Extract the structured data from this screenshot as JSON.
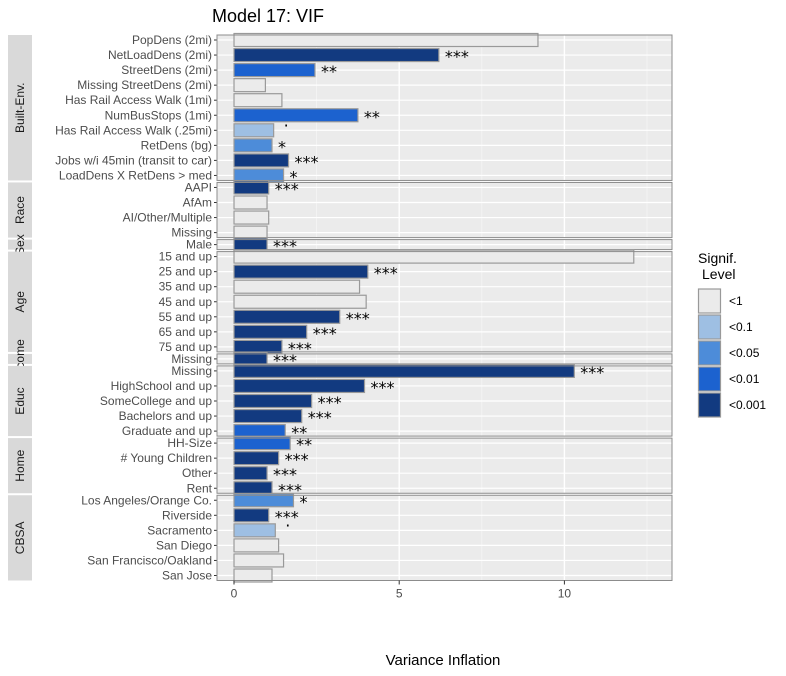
{
  "chart_data": {
    "type": "bar",
    "orientation": "horizontal",
    "title": "Model 17: VIF",
    "xlabel": "Variance Inflation",
    "ylabel": "",
    "xlim": [
      0,
      13.3
    ],
    "x_ticks": [
      0,
      5,
      10
    ],
    "grid": true,
    "legend": {
      "title_lines": [
        "Signif.",
        "Level"
      ],
      "placement": "right",
      "items": [
        {
          "label": "<1",
          "color": "#ebebeb"
        },
        {
          "label": "<0.1",
          "color": "#9ebfe3"
        },
        {
          "label": "<0.05",
          "color": "#4d8cd9"
        },
        {
          "label": "<0.01",
          "color": "#1c62cf"
        },
        {
          "label": "<0.001",
          "color": "#123a80"
        }
      ]
    },
    "level_colors": {
      "<1": "#ebebeb",
      "<0.1": "#9ebfe3",
      "<0.05": "#4d8cd9",
      "<0.01": "#1c62cf",
      "<0.001": "#123a80"
    },
    "groups": [
      {
        "name": "Built-Env.",
        "items": [
          {
            "label": "PopDens (2mi)",
            "value": 9.2,
            "level": "<1",
            "stars": ""
          },
          {
            "label": "NetLoadDens (2mi)",
            "value": 6.2,
            "level": "<0.001",
            "stars": "***"
          },
          {
            "label": "StreetDens (2mi)",
            "value": 2.45,
            "level": "<0.01",
            "stars": "**"
          },
          {
            "label": "Missing StreetDens (2mi)",
            "value": 0.95,
            "level": "<1",
            "stars": ""
          },
          {
            "label": "Has Rail Access Walk (1mi)",
            "value": 1.45,
            "level": "<1",
            "stars": ""
          },
          {
            "label": "NumBusStops (1mi)",
            "value": 3.75,
            "level": "<0.01",
            "stars": "**"
          },
          {
            "label": "Has Rail Access Walk (.25mi)",
            "value": 1.2,
            "level": "<0.1",
            "stars": "."
          },
          {
            "label": "RetDens (bg)",
            "value": 1.15,
            "level": "<0.05",
            "stars": "*"
          },
          {
            "label": "Jobs w/i 45min (transit to car)",
            "value": 1.65,
            "level": "<0.001",
            "stars": "***"
          },
          {
            "label": "LoadDens X RetDens > med",
            "value": 1.5,
            "level": "<0.05",
            "stars": "*"
          }
        ]
      },
      {
        "name": "Race",
        "items": [
          {
            "label": "AAPI",
            "value": 1.05,
            "level": "<0.001",
            "stars": "***"
          },
          {
            "label": "AfAm",
            "value": 1.0,
            "level": "<1",
            "stars": ""
          },
          {
            "label": "AI/Other/Multiple",
            "value": 1.05,
            "level": "<1",
            "stars": ""
          },
          {
            "label": "Missing",
            "value": 1.0,
            "level": "<1",
            "stars": ""
          }
        ]
      },
      {
        "name": "Sex",
        "items": [
          {
            "label": "Male",
            "value": 1.0,
            "level": "<0.001",
            "stars": "***"
          }
        ]
      },
      {
        "name": "Age",
        "items": [
          {
            "label": "15 and up",
            "value": 12.1,
            "level": "<1",
            "stars": ""
          },
          {
            "label": "25 and up",
            "value": 4.05,
            "level": "<0.001",
            "stars": "***"
          },
          {
            "label": "35 and up",
            "value": 3.8,
            "level": "<1",
            "stars": ""
          },
          {
            "label": "45 and up",
            "value": 4.0,
            "level": "<1",
            "stars": ""
          },
          {
            "label": "55 and up",
            "value": 3.2,
            "level": "<0.001",
            "stars": "***"
          },
          {
            "label": "65 and up",
            "value": 2.2,
            "level": "<0.001",
            "stars": "***"
          },
          {
            "label": "75 and up",
            "value": 1.45,
            "level": "<0.001",
            "stars": "***"
          }
        ]
      },
      {
        "name": "Income",
        "items": [
          {
            "label": "Missing",
            "value": 1.0,
            "level": "<0.001",
            "stars": "***"
          }
        ]
      },
      {
        "name": "Educ",
        "items": [
          {
            "label": "Missing",
            "value": 10.3,
            "level": "<0.001",
            "stars": "***"
          },
          {
            "label": "HighSchool and up",
            "value": 3.95,
            "level": "<0.001",
            "stars": "***"
          },
          {
            "label": "SomeCollege and up",
            "value": 2.35,
            "level": "<0.001",
            "stars": "***"
          },
          {
            "label": "Bachelors and up",
            "value": 2.05,
            "level": "<0.001",
            "stars": "***"
          },
          {
            "label": "Graduate and up",
            "value": 1.55,
            "level": "<0.01",
            "stars": "**"
          }
        ]
      },
      {
        "name": "Home",
        "items": [
          {
            "label": "HH-Size",
            "value": 1.7,
            "level": "<0.01",
            "stars": "**"
          },
          {
            "label": "# Young Children",
            "value": 1.35,
            "level": "<0.001",
            "stars": "***"
          },
          {
            "label": "Other",
            "value": 1.0,
            "level": "<0.001",
            "stars": "***"
          },
          {
            "label": "Rent",
            "value": 1.15,
            "level": "<0.001",
            "stars": "***"
          }
        ]
      },
      {
        "name": "CBSA",
        "items": [
          {
            "label": "Los Angeles/Orange Co.",
            "value": 1.8,
            "level": "<0.05",
            "stars": "*"
          },
          {
            "label": "Riverside",
            "value": 1.05,
            "level": "<0.001",
            "stars": "***"
          },
          {
            "label": "Sacramento",
            "value": 1.25,
            "level": "<0.1",
            "stars": "."
          },
          {
            "label": "San Diego",
            "value": 1.35,
            "level": "<1",
            "stars": ""
          },
          {
            "label": "San Francisco/Oakland",
            "value": 1.5,
            "level": "<1",
            "stars": ""
          },
          {
            "label": "San Jose",
            "value": 1.15,
            "level": "<1",
            "stars": ""
          }
        ]
      }
    ]
  }
}
